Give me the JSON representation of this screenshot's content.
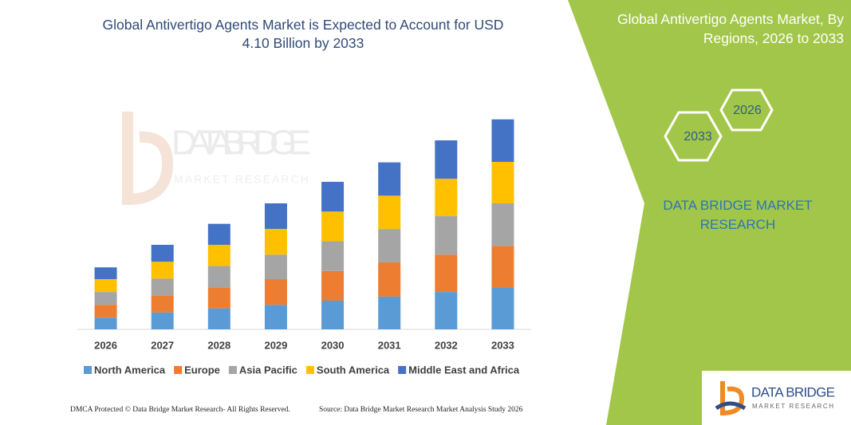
{
  "chart_data": {
    "type": "stacked_bar",
    "title": "Global Antivertigo Agents Market is Expected to Account for USD 4.10 Billion by 2033",
    "categories": [
      "2026",
      "2027",
      "2028",
      "2029",
      "2030",
      "2031",
      "2032",
      "2033"
    ],
    "series": [
      {
        "name": "North America",
        "color": "#5b9bd5",
        "values": [
          0.23,
          0.33,
          0.41,
          0.48,
          0.56,
          0.64,
          0.73,
          0.81
        ]
      },
      {
        "name": "Europe",
        "color": "#ed7d31",
        "values": [
          0.25,
          0.33,
          0.41,
          0.5,
          0.58,
          0.67,
          0.73,
          0.82
        ]
      },
      {
        "name": "Asia Pacific",
        "color": "#a5a5a5",
        "values": [
          0.25,
          0.33,
          0.42,
          0.48,
          0.58,
          0.65,
          0.75,
          0.83
        ]
      },
      {
        "name": "South America",
        "color": "#ffc000",
        "values": [
          0.25,
          0.33,
          0.41,
          0.5,
          0.58,
          0.65,
          0.73,
          0.81
        ]
      },
      {
        "name": "Middle East and Africa",
        "color": "#4472c4",
        "values": [
          0.23,
          0.33,
          0.41,
          0.5,
          0.58,
          0.65,
          0.75,
          0.83
        ]
      }
    ],
    "ylim": [
      0,
      4.5
    ],
    "legend": "bottom"
  },
  "side_panel": {
    "title": "Global Antivertigo Agents Market, By Regions, 2026 to 2033",
    "hex_start": "2026",
    "hex_end": "2033",
    "brand": "DATA BRIDGE MARKET RESEARCH"
  },
  "watermark": {
    "name": "DATA BRIDGE",
    "tagline": "MARKET RESEARCH"
  },
  "logo": {
    "name": "DATA BRIDGE",
    "tagline": "MARKET RESEARCH"
  },
  "footer": {
    "left": "DMCA Protected © Data Bridge Market Research- All Rights Reserved.",
    "right": "Source: Data Bridge Market Research  Market Analysis Study 2026"
  }
}
